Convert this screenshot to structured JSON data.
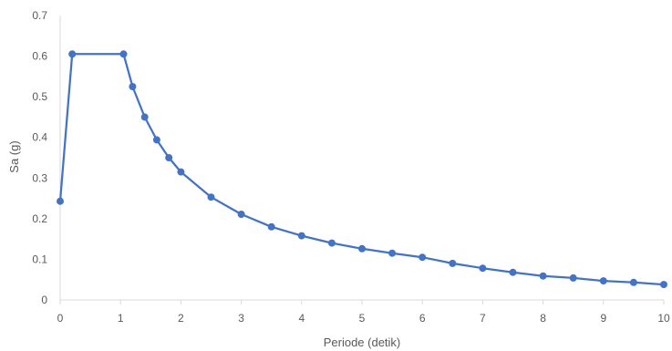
{
  "chart_data": {
    "type": "line",
    "title": "",
    "xlabel": "Periode (detik)",
    "ylabel": "Sa (g)",
    "xlim": [
      0,
      10
    ],
    "ylim": [
      0,
      0.7
    ],
    "x_ticks": [
      "0",
      "1",
      "2",
      "3",
      "4",
      "5",
      "6",
      "7",
      "8",
      "9",
      "10"
    ],
    "y_ticks": [
      "0",
      "0.1",
      "0.2",
      "0.3",
      "0.4",
      "0.5",
      "0.6",
      "0.7"
    ],
    "grid": false,
    "legend": "none",
    "series": [
      {
        "color": "#4472c4",
        "marker": "circle",
        "x": [
          0,
          0.2,
          1.05,
          1.2,
          1.4,
          1.6,
          1.8,
          2.0,
          2.5,
          3.0,
          3.5,
          4.0,
          4.5,
          5.0,
          5.5,
          6.0,
          6.5,
          7.0,
          7.5,
          8.0,
          8.5,
          9.0,
          9.5,
          10.0
        ],
        "y": [
          0.243,
          0.605,
          0.605,
          0.525,
          0.45,
          0.394,
          0.35,
          0.315,
          0.253,
          0.211,
          0.18,
          0.158,
          0.14,
          0.126,
          0.115,
          0.105,
          0.09,
          0.078,
          0.068,
          0.059,
          0.054,
          0.047,
          0.043,
          0.038
        ]
      }
    ]
  }
}
